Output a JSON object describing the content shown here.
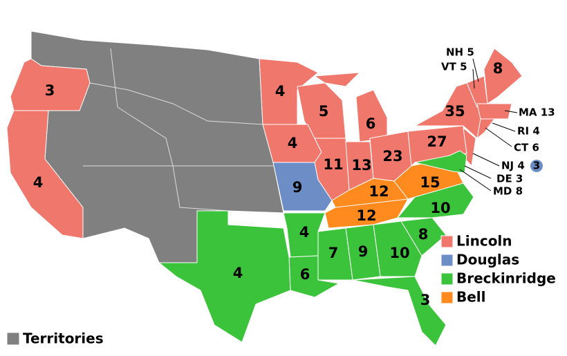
{
  "map": {
    "states": [
      {
        "votes": 3
      },
      {
        "votes": 4
      },
      {
        "votes": 4
      },
      {
        "votes": 5
      },
      {
        "votes": 6
      },
      {
        "votes": 4
      },
      {
        "votes": 11
      },
      {
        "votes": 13
      },
      {
        "votes": 23
      },
      {
        "votes": 27
      },
      {
        "votes": 35
      },
      {
        "votes": 8
      },
      {
        "votes": 9
      },
      {
        "votes": 12
      },
      {
        "votes": 15
      },
      {
        "votes": 12
      },
      {
        "votes": 10
      },
      {
        "votes": 8
      },
      {
        "votes": 10
      },
      {
        "votes": 9
      },
      {
        "votes": 7
      },
      {
        "votes": 4
      },
      {
        "votes": 6
      },
      {
        "votes": 4
      },
      {
        "votes": 3
      }
    ],
    "callouts": [
      {
        "label": "NH 5"
      },
      {
        "label": "VT 5"
      },
      {
        "label": "MA 13"
      },
      {
        "label": "RI 4"
      },
      {
        "label": "CT 6"
      },
      {
        "label": "NJ 4"
      },
      {
        "label": "DE 3"
      },
      {
        "label": "MD 8"
      }
    ],
    "nj_split": {
      "votes": 3,
      "color": "#6d8dc6"
    },
    "legend": [
      {
        "label": "Lincoln",
        "color": "#f0776c"
      },
      {
        "label": "Douglas",
        "color": "#6d8dc6"
      },
      {
        "label": "Breckinridge",
        "color": "#3cc33c"
      },
      {
        "label": "Bell",
        "color": "#ff8a1e"
      }
    ],
    "territories": {
      "label": "Territories",
      "color": "#808080"
    }
  }
}
